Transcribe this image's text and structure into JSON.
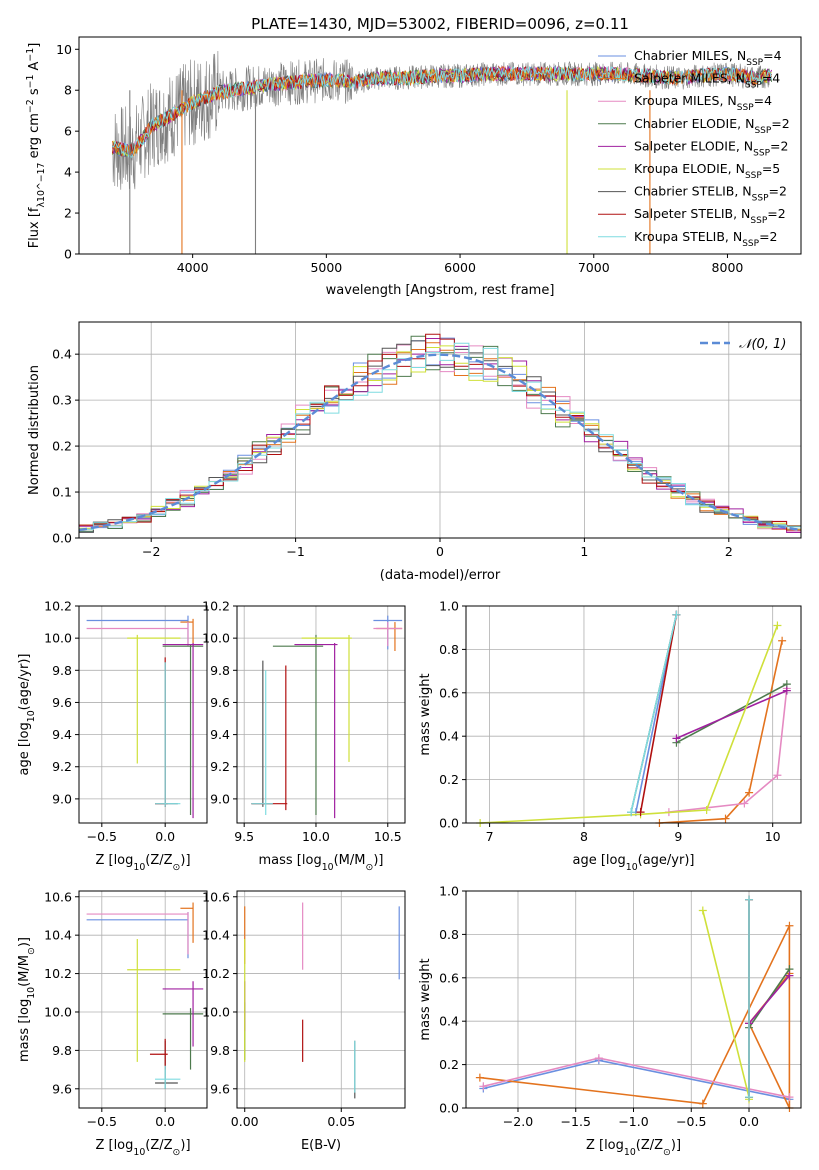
{
  "colors": [
    "#6a8fe0",
    "#e3731e",
    "#e58ac2",
    "#4d7a4d",
    "#a020a0",
    "#cfe03a",
    "#555555",
    "#b01010",
    "#7fdce0"
  ],
  "chart_data": [
    {
      "type": "line",
      "title": "PLATE=1430, MJD=53002, FIBERID=0096, z=0.11",
      "xlabel": "wavelength [Angstrom, rest frame]",
      "ylabel": "Flux [f_λ10^-17 erg cm^-2 s^-1 A^-1]",
      "xlim": [
        3150,
        8550
      ],
      "ylim": [
        0,
        10.6
      ],
      "xticks": [
        "4000",
        "5000",
        "6000",
        "7000",
        "8000"
      ],
      "yticks": [
        "0",
        "2",
        "4",
        "6",
        "8",
        "10"
      ],
      "legend": [
        "Chabrier MILES, N_SSP=4",
        "Salpeter MILES, N_SSP=4",
        "Kroupa MILES, N_SSP=4",
        "Chabrier ELODIE, N_SSP=2",
        "Salpeter ELODIE, N_SSP=2",
        "Kroupa ELODIE, N_SSP=5",
        "Chabrier STELIB, N_SSP=2",
        "Salpeter STELIB, N_SSP=2",
        "Kroupa STELIB, N_SSP=2"
      ],
      "legend_position": "upper-right",
      "spectrum_profile": {
        "wavelength": [
          3400,
          3550,
          3700,
          3850,
          4000,
          4200,
          4400,
          4600,
          4800,
          5000,
          5200,
          5400,
          5600,
          5800,
          6000,
          6200,
          6400,
          6600,
          6800,
          7000,
          7200,
          7400,
          7600,
          7800,
          8000,
          8200,
          8300
        ],
        "flux": [
          5.2,
          5.0,
          6.3,
          6.8,
          7.4,
          7.9,
          8.1,
          8.3,
          8.4,
          8.5,
          8.4,
          8.6,
          8.6,
          8.7,
          8.7,
          8.8,
          8.8,
          8.8,
          8.8,
          8.8,
          8.8,
          8.7,
          8.6,
          8.7,
          8.8,
          8.6,
          8.7
        ]
      },
      "grid": false
    },
    {
      "type": "bar",
      "xlabel": "(data-model)/error",
      "ylabel": "Normed distribution",
      "xlim": [
        -2.5,
        2.5
      ],
      "ylim": [
        0,
        0.47
      ],
      "xticks": [
        "−2",
        "−1",
        "0",
        "1",
        "2"
      ],
      "yticks": [
        "0.0",
        "0.1",
        "0.2",
        "0.3",
        "0.4"
      ],
      "legend": [
        "𝒩(0, 1)"
      ],
      "legend_position": "upper-right",
      "grid": true
    },
    {
      "type": "scatter",
      "xlabel": "Z [log10(Z/Z☉)]",
      "ylabel": "age [log10(age/yr)]",
      "xlim": [
        -0.68,
        0.33
      ],
      "ylim": [
        8.85,
        10.2
      ],
      "xticks": [
        "−0.5",
        "0.0"
      ],
      "yticks": [
        "9.0",
        "9.2",
        "9.4",
        "9.6",
        "9.8",
        "10.0",
        "10.2"
      ],
      "grid": true
    },
    {
      "type": "scatter",
      "xlabel": "mass [log10(M/M☉)]",
      "xlim": [
        9.45,
        10.62
      ],
      "ylim": [
        8.85,
        10.2
      ],
      "xticks": [
        "9.5",
        "10.0",
        "10.5"
      ],
      "yticks": [
        "9.0",
        "9.2",
        "9.4",
        "9.6",
        "9.8",
        "10.0",
        "10.2"
      ],
      "grid": true
    },
    {
      "type": "line",
      "xlabel": "age [log10(age/yr)]",
      "ylabel": "mass weight",
      "xlim": [
        6.75,
        10.3
      ],
      "ylim": [
        0,
        1.0
      ],
      "xticks": [
        "7",
        "8",
        "9",
        "10"
      ],
      "yticks": [
        "0.0",
        "0.2",
        "0.4",
        "0.6",
        "0.8",
        "1.0"
      ],
      "series": [
        {
          "x": [
            8.55,
            8.98
          ],
          "y": [
            0.05,
            0.96
          ]
        },
        {
          "x": [
            8.8,
            9.5,
            9.75,
            10.1
          ],
          "y": [
            0.0,
            0.02,
            0.14,
            0.84
          ]
        },
        {
          "x": [
            8.9,
            9.7,
            10.05,
            10.15
          ],
          "y": [
            0.05,
            0.09,
            0.22,
            0.62
          ]
        },
        {
          "x": [
            8.98,
            10.15
          ],
          "y": [
            0.37,
            0.64
          ]
        },
        {
          "x": [
            8.98,
            10.15
          ],
          "y": [
            0.39,
            0.61
          ]
        },
        {
          "x": [
            6.9,
            8.6,
            9.3,
            10.05
          ],
          "y": [
            0.0,
            0.04,
            0.06,
            0.91
          ]
        },
        {
          "x": [
            8.5,
            8.98
          ],
          "y": [
            0.05,
            0.96
          ]
        },
        {
          "x": [
            8.6,
            8.98
          ],
          "y": [
            0.05,
            0.96
          ]
        },
        {
          "x": [
            8.5,
            8.98
          ],
          "y": [
            0.05,
            0.96
          ]
        }
      ],
      "grid": true
    },
    {
      "type": "scatter",
      "xlabel": "Z [log10(Z/Z☉)]",
      "ylabel": "mass [log10(M/M☉)]",
      "xlim": [
        -0.68,
        0.33
      ],
      "ylim": [
        9.5,
        10.63
      ],
      "xticks": [
        "−0.5",
        "0.0"
      ],
      "yticks": [
        "9.6",
        "9.8",
        "10.0",
        "10.2",
        "10.4",
        "10.6"
      ],
      "grid": true
    },
    {
      "type": "scatter",
      "xlabel": "E(B-V)",
      "xlim": [
        -0.004,
        0.083
      ],
      "ylim": [
        9.5,
        10.63
      ],
      "xticks": [
        "0.00",
        "0.05"
      ],
      "yticks": [
        "9.6",
        "9.8",
        "10.0",
        "10.2",
        "10.4",
        "10.6"
      ],
      "grid": true
    },
    {
      "type": "line",
      "xlabel": "Z [log10(Z/Z☉)]",
      "ylabel": "mass weight",
      "xlim": [
        -2.45,
        0.45
      ],
      "ylim": [
        0,
        1.0
      ],
      "xticks": [
        "−2.0",
        "−1.5",
        "−1.0",
        "−0.5",
        "0.0"
      ],
      "yticks": [
        "0.0",
        "0.2",
        "0.4",
        "0.6",
        "0.8",
        "1.0"
      ],
      "series": [
        {
          "x": [
            -2.3,
            -1.3,
            0.35
          ],
          "y": [
            0.09,
            0.22,
            0.04
          ]
        },
        {
          "x": [
            -2.33,
            -0.4,
            0.35,
            0.35,
            0.0,
            0.35
          ],
          "y": [
            0.14,
            0.02,
            0.84,
            0.0,
            0.39,
            0.62
          ]
        },
        {
          "x": [
            -2.3,
            -1.3,
            0.35
          ],
          "y": [
            0.1,
            0.23,
            0.05
          ]
        },
        {
          "x": [
            0.0,
            0.35
          ],
          "y": [
            0.37,
            0.64
          ]
        },
        {
          "x": [
            0.0,
            0.35
          ],
          "y": [
            0.39,
            0.61
          ]
        },
        {
          "x": [
            -0.4,
            0.0,
            0.0
          ],
          "y": [
            0.91,
            0.05,
            0.04
          ]
        },
        {
          "x": [
            0.0,
            0.0
          ],
          "y": [
            0.05,
            0.96
          ]
        },
        {
          "x": [
            0.0,
            0.0
          ],
          "y": [
            0.05,
            0.96
          ]
        },
        {
          "x": [
            0.0,
            0.0
          ],
          "y": [
            0.05,
            0.96
          ]
        }
      ],
      "grid": true
    }
  ]
}
